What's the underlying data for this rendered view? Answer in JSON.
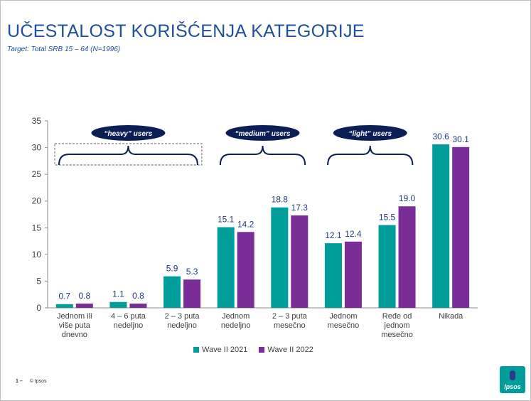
{
  "title": "UČESTALOST KORIŠĆENJA KATEGORIJE",
  "subtitle": "Target: Total SRB 15 – 64 (N=1996)",
  "footer": {
    "page": "1 –",
    "copyright": "© Ipsos"
  },
  "logo_text": "Ipsos",
  "segments": [
    {
      "label": "“heavy” users",
      "from": 0,
      "to": 2,
      "style": "dashed"
    },
    {
      "label": "“medium” users",
      "from": 3,
      "to": 4,
      "style": "solid"
    },
    {
      "label": "“light” users",
      "from": 5,
      "to": 6,
      "style": "solid"
    }
  ],
  "colors": {
    "wave2021": "#009d9a",
    "wave2022": "#7b2d97",
    "segment_bubble": "#0c1f55",
    "title": "#1f4e9c"
  },
  "chart_data": {
    "type": "bar",
    "categories": [
      [
        "Jednom ili",
        "više puta",
        "dnevno"
      ],
      [
        "4 – 6 puta",
        "nedeljno"
      ],
      [
        "2 – 3 puta",
        "nedeljno"
      ],
      [
        "Jednom",
        "nedeljno"
      ],
      [
        "2 – 3 puta",
        "mesečno"
      ],
      [
        "Jednom",
        "mesečno"
      ],
      [
        "Ređe od",
        "jednom",
        "mesečno"
      ],
      [
        "Nikada"
      ]
    ],
    "series": [
      {
        "name": "Wave II 2021",
        "values": [
          0.7,
          1.1,
          5.9,
          15.1,
          18.8,
          12.1,
          15.5,
          30.6
        ]
      },
      {
        "name": "Wave II 2022",
        "values": [
          0.8,
          0.8,
          5.3,
          14.2,
          17.3,
          12.4,
          19.0,
          30.1
        ]
      }
    ],
    "ylim": [
      0,
      35
    ],
    "yticks": [
      0,
      5,
      10,
      15,
      20,
      25,
      30,
      35
    ],
    "legend_position": "bottom",
    "grid": false
  }
}
